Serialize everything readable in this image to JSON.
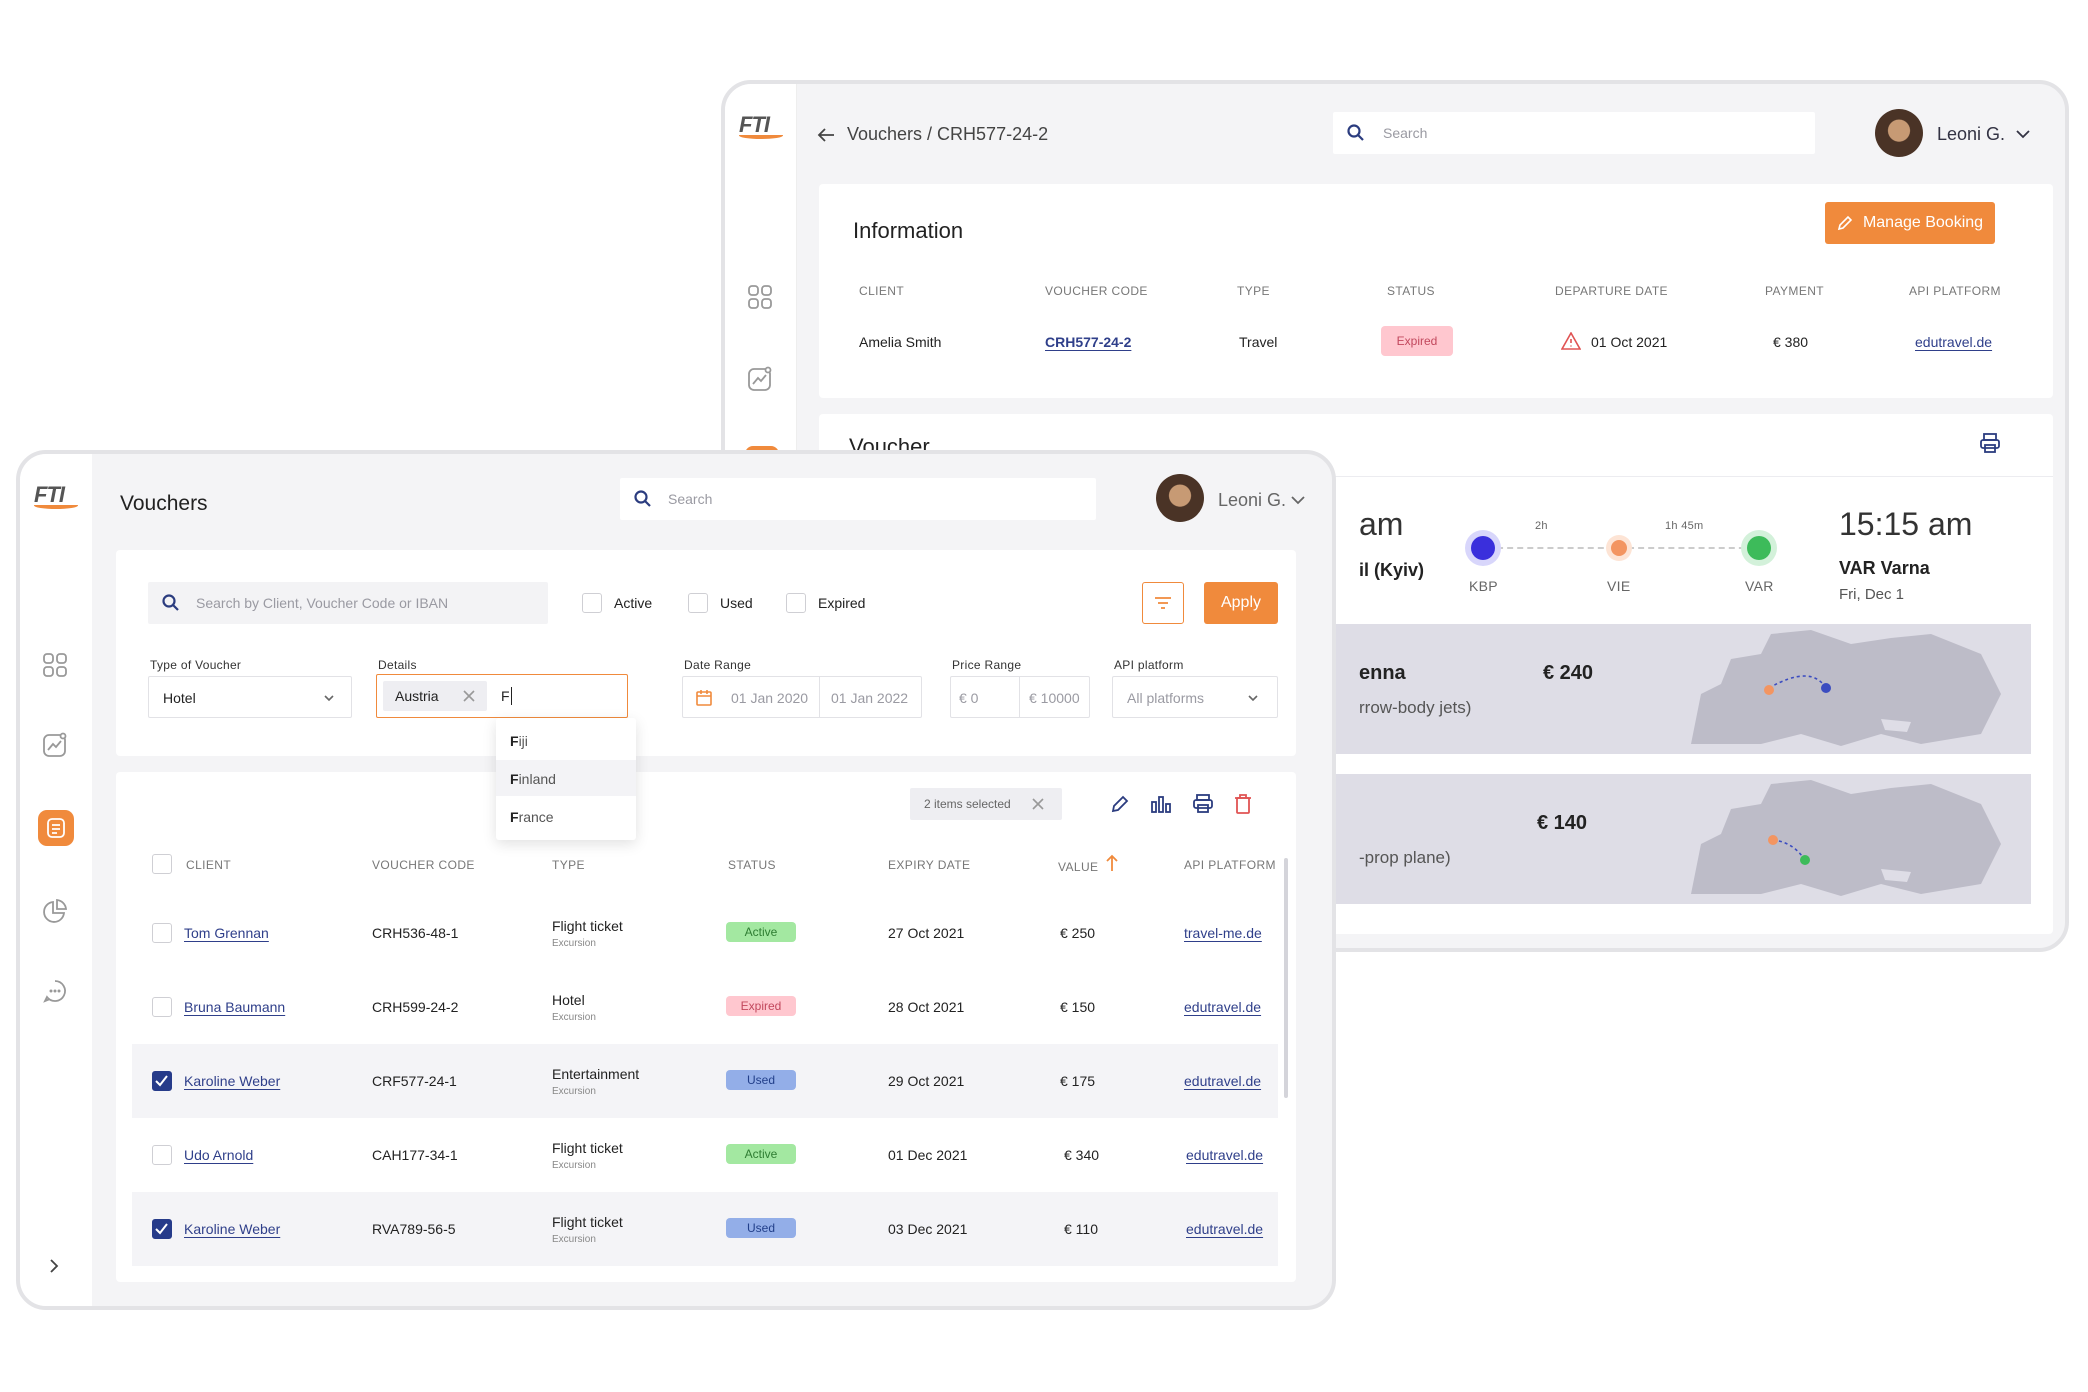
{
  "brand_color": "#f08a3c",
  "back_window": {
    "logo": "FTI",
    "breadcrumb": "Vouchers / CRH577-24-2",
    "search_placeholder": "Search",
    "user_name": "Leoni G.",
    "info": {
      "title": "Information",
      "manage_button": "Manage Booking",
      "headers": {
        "client": "CLIENT",
        "voucher_code": "VOUCHER CODE",
        "type": "TYPE",
        "status": "STATUS",
        "departure_date": "DEPARTURE DATE",
        "payment": "PAYMENT",
        "api_platform": "API PLATFORM"
      },
      "values": {
        "client": "Amelia Smith",
        "voucher_code": "CRH577-24-2",
        "type": "Travel",
        "status": "Expired",
        "departure_date": "01 Oct 2021",
        "payment": "€ 380",
        "api_platform": "edutravel.de"
      }
    },
    "voucher": {
      "title": "Voucher",
      "dep_time_fragment": "am",
      "dep_city_fragment": "il (Kyiv)",
      "stops": [
        {
          "code": "KBP",
          "color": "#3a2fdc"
        },
        {
          "code": "VIE",
          "color": "#f39561"
        },
        {
          "code": "VAR",
          "color": "#3dbb5a"
        }
      ],
      "durations": [
        "2h",
        "1h 45m"
      ],
      "arr_time": "15:15 am",
      "arr_airport": "VAR Varna",
      "arr_date": "Fri, Dec 1",
      "offers": [
        {
          "name_fragment": "enna",
          "sub_fragment": "rrow-body jets)",
          "price": "€ 240"
        },
        {
          "name_fragment": "",
          "sub_fragment": "-prop plane)",
          "price": "€ 140"
        }
      ]
    }
  },
  "front_window": {
    "logo": "FTI",
    "title": "Vouchers",
    "search_placeholder": "Search",
    "user_name": "Leoni G.",
    "filters": {
      "search_placeholder": "Search by Client, Voucher Code or IBAN",
      "checks": [
        {
          "label": "Active"
        },
        {
          "label": "Used"
        },
        {
          "label": "Expired"
        }
      ],
      "apply": "Apply",
      "type_label": "Type of Voucher",
      "type_value": "Hotel",
      "details_label": "Details",
      "details_chip": "Austria",
      "details_typed": "F",
      "suggestions": [
        "Fiji",
        "Finland",
        "France"
      ],
      "date_label": "Date Range",
      "date_from": "01 Jan 2020",
      "date_to": "01 Jan 2022",
      "price_label": "Price Range",
      "price_from": "€ 0",
      "price_to": "€ 10000",
      "api_label": "API platform",
      "api_value": "All platforms"
    },
    "table": {
      "selected_text": "2 items selected",
      "headers": {
        "client": "CLIENT",
        "voucher_code": "VOUCHER CODE",
        "type": "TYPE",
        "status": "STATUS",
        "expiry_date": "EXPIRY DATE",
        "value": "VALUE",
        "api_platform": "API PLATFORM"
      },
      "rows": [
        {
          "checked": false,
          "client": "Tom Grennan",
          "code": "CRH536-48-1",
          "type": "Flight ticket",
          "sub": "Excursion",
          "status": "Active",
          "expiry": "27 Oct 2021",
          "value": "€ 250",
          "platform": "travel-me.de"
        },
        {
          "checked": false,
          "client": "Bruna Baumann",
          "code": "CRH599-24-2",
          "type": "Hotel",
          "sub": "Excursion",
          "status": "Expired",
          "expiry": "28 Oct 2021",
          "value": "€ 150",
          "platform": "edutravel.de"
        },
        {
          "checked": true,
          "client": "Karoline Weber",
          "code": "CRF577-24-1",
          "type": "Entertainment",
          "sub": "Excursion",
          "status": "Used",
          "expiry": "29 Oct 2021",
          "value": "€ 175",
          "platform": "edutravel.de"
        },
        {
          "checked": false,
          "client": "Udo Arnold",
          "code": "CAH177-34-1",
          "type": "Flight ticket",
          "sub": "Excursion",
          "status": "Active",
          "expiry": "01 Dec 2021",
          "value": "€ 340",
          "platform": "edutravel.de"
        },
        {
          "checked": true,
          "client": "Karoline Weber",
          "code": "RVA789-56-5",
          "type": "Flight ticket",
          "sub": "Excursion",
          "status": "Used",
          "expiry": "03 Dec 2021",
          "value": "€ 110",
          "platform": "edutravel.de"
        }
      ]
    }
  }
}
